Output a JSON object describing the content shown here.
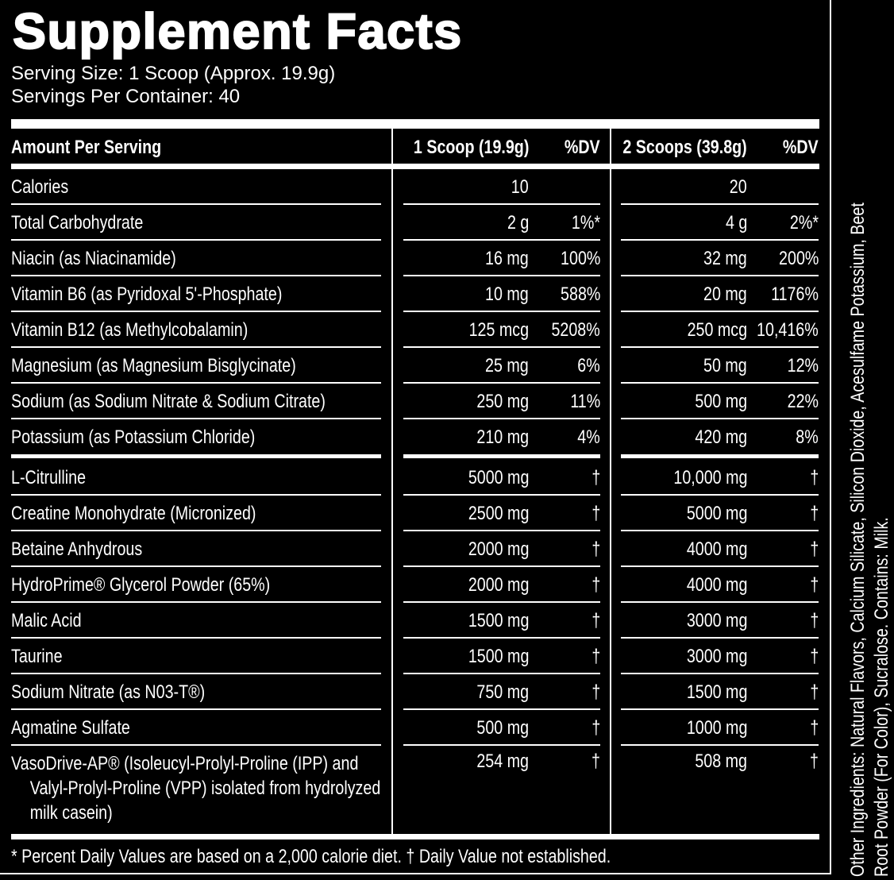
{
  "title": "Supplement Facts",
  "serving_size": "Serving Size: 1 Scoop (Approx. 19.9g)",
  "servings_per_container": "Servings Per Container: 40",
  "header": {
    "amount": "Amount Per Serving",
    "col1": "1 Scoop (19.9g)",
    "dv1": "%DV",
    "col2": "2 Scoops (39.8g)",
    "dv2": "%DV"
  },
  "rows": [
    {
      "name": "Calories",
      "a1": "10",
      "d1": "",
      "a2": "20",
      "d2": ""
    },
    {
      "name": "Total Carbohydrate",
      "a1": "2 g",
      "d1": "1%*",
      "a2": "4 g",
      "d2": "2%*"
    },
    {
      "name": "Niacin (as Niacinamide)",
      "a1": "16 mg",
      "d1": "100%",
      "a2": "32 mg",
      "d2": "200%"
    },
    {
      "name": "Vitamin B6 (as Pyridoxal 5'-Phosphate)",
      "a1": "10 mg",
      "d1": "588%",
      "a2": "20 mg",
      "d2": "1176%"
    },
    {
      "name": "Vitamin B12 (as Methylcobalamin)",
      "a1": "125 mcg",
      "d1": "5208%",
      "a2": "250 mcg",
      "d2": "10,416%"
    },
    {
      "name": "Magnesium (as Magnesium Bisglycinate)",
      "a1": "25 mg",
      "d1": "6%",
      "a2": "50 mg",
      "d2": "12%"
    },
    {
      "name": "Sodium (as Sodium Nitrate & Sodium Citrate)",
      "a1": "250 mg",
      "d1": "11%",
      "a2": "500 mg",
      "d2": "22%"
    },
    {
      "name": "Potassium (as Potassium Chloride)",
      "a1": "210 mg",
      "d1": "4%",
      "a2": "420 mg",
      "d2": "8%"
    },
    {
      "name": "L-Citrulline",
      "a1": "5000 mg",
      "d1": "†",
      "a2": "10,000 mg",
      "d2": "†"
    },
    {
      "name": "Creatine Monohydrate (Micronized)",
      "a1": "2500 mg",
      "d1": "†",
      "a2": "5000 mg",
      "d2": "†"
    },
    {
      "name": "Betaine Anhydrous",
      "a1": "2000 mg",
      "d1": "†",
      "a2": "4000 mg",
      "d2": "†"
    },
    {
      "name": "HydroPrime® Glycerol Powder (65%)",
      "a1": "2000 mg",
      "d1": "†",
      "a2": "4000 mg",
      "d2": "†"
    },
    {
      "name": "Malic Acid",
      "a1": "1500 mg",
      "d1": "†",
      "a2": "3000 mg",
      "d2": "†"
    },
    {
      "name": "Taurine",
      "a1": "1500 mg",
      "d1": "†",
      "a2": "3000 mg",
      "d2": "†"
    },
    {
      "name": "Sodium Nitrate (as N03-T®)",
      "a1": "750 mg",
      "d1": "†",
      "a2": "1500 mg",
      "d2": "†"
    },
    {
      "name": "Agmatine Sulfate",
      "a1": "500 mg",
      "d1": "†",
      "a2": "1000 mg",
      "d2": "†"
    },
    {
      "name": "VasoDrive-AP® (Isoleucyl-Prolyl-Proline (IPP) and Valyl-Prolyl-Proline (VPP) isolated from hydrolyzed milk casein)",
      "a1": "254 mg",
      "d1": "†",
      "a2": "508 mg",
      "d2": "†"
    }
  ],
  "footnote": "* Percent Daily Values are based on a 2,000 calorie diet. † Daily Value not established.",
  "other_ingredients": {
    "line1": "Other Ingredients: Natural Flavors, Calcium Silicate, Silicon Dioxide, Acesulfame Potassium, Beet",
    "line2": "Root Powder (For Color), Sucralose. Contains: Milk."
  },
  "colors": {
    "background": "#000000",
    "text": "#ffffff"
  }
}
